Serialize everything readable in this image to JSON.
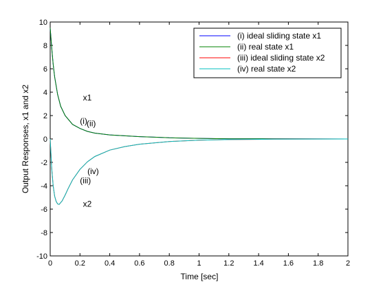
{
  "chart_data": {
    "type": "line",
    "title": "",
    "xlabel": "Time [sec]",
    "ylabel": "Output Responses, x1 and x2",
    "xlim": [
      0,
      2
    ],
    "ylim": [
      -10,
      10
    ],
    "xticks": [
      "0",
      "0.2",
      "0.4",
      "0.6",
      "0.8",
      "1",
      "1.2",
      "1.4",
      "1.6",
      "1.8",
      "2"
    ],
    "yticks": [
      "-10",
      "-8",
      "-6",
      "-4",
      "-2",
      "0",
      "2",
      "4",
      "6",
      "8",
      "10"
    ],
    "grid": false,
    "legend_position": "top-right",
    "series": [
      {
        "name": "(i) ideal sliding state x1",
        "color": "#0000ff",
        "x": [
          0,
          0.01,
          0.02,
          0.03,
          0.05,
          0.07,
          0.1,
          0.15,
          0.2,
          0.25,
          0.3,
          0.4,
          0.5,
          0.6,
          0.7,
          0.8,
          1.0,
          1.2,
          1.5,
          2.0
        ],
        "y": [
          9.5,
          7.8,
          6.4,
          5.3,
          3.8,
          2.8,
          2.0,
          1.25,
          0.9,
          0.65,
          0.5,
          0.35,
          0.27,
          0.2,
          0.15,
          0.1,
          0.05,
          0.02,
          0.01,
          0.0
        ]
      },
      {
        "name": "(ii) real state x1",
        "color": "#008000",
        "x": [
          0,
          0.01,
          0.02,
          0.03,
          0.05,
          0.07,
          0.1,
          0.15,
          0.2,
          0.25,
          0.3,
          0.4,
          0.5,
          0.6,
          0.7,
          0.8,
          1.0,
          1.2,
          1.5,
          2.0
        ],
        "y": [
          9.5,
          7.8,
          6.4,
          5.3,
          3.8,
          2.8,
          2.0,
          1.25,
          0.9,
          0.65,
          0.5,
          0.35,
          0.27,
          0.2,
          0.15,
          0.1,
          0.05,
          0.02,
          0.01,
          0.0
        ]
      },
      {
        "name": "(iii) ideal sliding state x2",
        "color": "#ff0000",
        "x": [
          0,
          0.01,
          0.02,
          0.03,
          0.04,
          0.05,
          0.06,
          0.08,
          0.1,
          0.12,
          0.15,
          0.2,
          0.25,
          0.3,
          0.4,
          0.5,
          0.6,
          0.8,
          1.0,
          1.2,
          1.5,
          2.0
        ],
        "y": [
          0,
          -2.5,
          -4.0,
          -4.9,
          -5.35,
          -5.55,
          -5.6,
          -5.3,
          -4.8,
          -4.25,
          -3.5,
          -2.6,
          -1.95,
          -1.5,
          -0.95,
          -0.65,
          -0.45,
          -0.22,
          -0.1,
          -0.05,
          -0.02,
          0.0
        ]
      },
      {
        "name": "(iv) real state x2",
        "color": "#00bfbf",
        "x": [
          0,
          0.01,
          0.02,
          0.03,
          0.04,
          0.05,
          0.06,
          0.08,
          0.1,
          0.12,
          0.15,
          0.2,
          0.25,
          0.3,
          0.4,
          0.5,
          0.6,
          0.8,
          1.0,
          1.2,
          1.5,
          2.0
        ],
        "y": [
          0,
          -2.5,
          -4.0,
          -4.9,
          -5.35,
          -5.55,
          -5.6,
          -5.3,
          -4.8,
          -4.25,
          -3.5,
          -2.6,
          -1.95,
          -1.5,
          -0.95,
          -0.65,
          -0.45,
          -0.22,
          -0.1,
          -0.05,
          -0.02,
          0.0
        ]
      }
    ],
    "annotations": [
      {
        "text": "x1",
        "x": 0.22,
        "y": 3.3
      },
      {
        "text": "(i)",
        "x": 0.2,
        "y": 1.3
      },
      {
        "text": "(ii)",
        "x": 0.245,
        "y": 1.1
      },
      {
        "text": "(iv)",
        "x": 0.25,
        "y": -3.0
      },
      {
        "text": "(iii)",
        "x": 0.2,
        "y": -3.8
      },
      {
        "text": "x2",
        "x": 0.22,
        "y": -5.8
      }
    ]
  }
}
